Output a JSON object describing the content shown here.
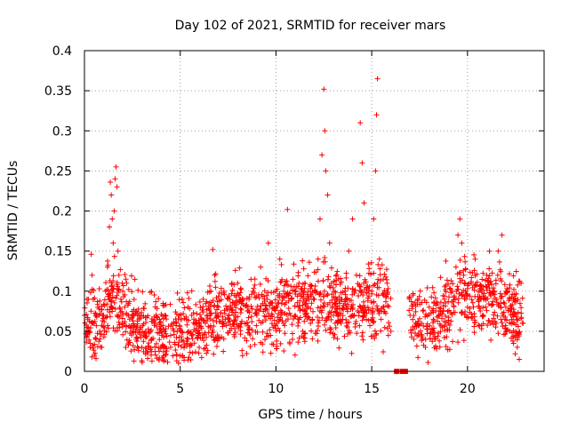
{
  "chart_data": {
    "type": "scatter",
    "title": "Day 102 of 2021, SRMTID for receiver mars",
    "xlabel": "GPS time / hours",
    "ylabel": "SRMTID / TECUs",
    "xlim": [
      0,
      24
    ],
    "ylim": [
      0,
      0.4
    ],
    "xticks": [
      0,
      5,
      10,
      15,
      20
    ],
    "xtick_labels": [
      "0",
      "5",
      "10",
      "15",
      "20"
    ],
    "yticks": [
      0,
      0.05,
      0.1,
      0.15,
      0.2,
      0.25,
      0.3,
      0.35,
      0.4
    ],
    "ytick_labels": [
      "0",
      "0.05",
      "0.1",
      "0.15",
      "0.2",
      "0.25",
      "0.3",
      "0.35",
      "0.4"
    ],
    "grid": true,
    "marker": "+",
    "color": "#ff0000",
    "point_count_estimate": 2300,
    "x_range_observed": [
      0,
      22.9
    ],
    "notes_on_density": "dense band of points mostly between 0.02 and 0.12 across the day; gap near 16.0-16.9 h with small squares at y=0",
    "points": [
      [
        0.0,
        0.07
      ],
      [
        0.1,
        0.05
      ],
      [
        0.2,
        0.09
      ],
      [
        0.3,
        0.03
      ],
      [
        0.35,
        0.146
      ],
      [
        0.4,
        0.12
      ],
      [
        0.5,
        0.06
      ],
      [
        0.6,
        0.04
      ],
      [
        0.7,
        0.08
      ],
      [
        0.8,
        0.05
      ],
      [
        0.9,
        0.03
      ],
      [
        1.0,
        0.07
      ],
      [
        1.1,
        0.1
      ],
      [
        1.2,
        0.13
      ],
      [
        1.3,
        0.18
      ],
      [
        1.35,
        0.236
      ],
      [
        1.4,
        0.22
      ],
      [
        1.45,
        0.19
      ],
      [
        1.5,
        0.16
      ],
      [
        1.55,
        0.2
      ],
      [
        1.6,
        0.24
      ],
      [
        1.65,
        0.255
      ],
      [
        1.7,
        0.23
      ],
      [
        1.75,
        0.15
      ],
      [
        1.8,
        0.12
      ],
      [
        1.9,
        0.09
      ],
      [
        2.0,
        0.1
      ],
      [
        2.1,
        0.08
      ],
      [
        2.2,
        0.11
      ],
      [
        2.3,
        0.07
      ],
      [
        2.5,
        0.05
      ],
      [
        2.7,
        0.04
      ],
      [
        3.0,
        0.03
      ],
      [
        3.2,
        0.05
      ],
      [
        3.3,
        0.016
      ],
      [
        3.5,
        0.04
      ],
      [
        3.7,
        0.06
      ],
      [
        4.0,
        0.05
      ],
      [
        4.2,
        0.07
      ],
      [
        4.5,
        0.03
      ],
      [
        4.8,
        0.06
      ],
      [
        5.0,
        0.05
      ],
      [
        5.1,
        0.09
      ],
      [
        5.2,
        0.014
      ],
      [
        5.4,
        0.04
      ],
      [
        5.6,
        0.07
      ],
      [
        5.8,
        0.05
      ],
      [
        6.0,
        0.06
      ],
      [
        6.2,
        0.09
      ],
      [
        6.4,
        0.07
      ],
      [
        6.6,
        0.1
      ],
      [
        6.7,
        0.152
      ],
      [
        6.8,
        0.12
      ],
      [
        7.0,
        0.08
      ],
      [
        7.2,
        0.06
      ],
      [
        7.5,
        0.09
      ],
      [
        7.8,
        0.07
      ],
      [
        8.0,
        0.11
      ],
      [
        8.2,
        0.06
      ],
      [
        8.5,
        0.08
      ],
      [
        8.8,
        0.1
      ],
      [
        9.0,
        0.07
      ],
      [
        9.2,
        0.13
      ],
      [
        9.4,
        0.09
      ],
      [
        9.6,
        0.16
      ],
      [
        9.8,
        0.07
      ],
      [
        10.0,
        0.1
      ],
      [
        10.2,
        0.14
      ],
      [
        10.4,
        0.06
      ],
      [
        10.6,
        0.202
      ],
      [
        10.8,
        0.09
      ],
      [
        11.0,
        0.07
      ],
      [
        11.2,
        0.11
      ],
      [
        11.4,
        0.05
      ],
      [
        11.6,
        0.08
      ],
      [
        11.8,
        0.06
      ],
      [
        12.0,
        0.09
      ],
      [
        12.2,
        0.14
      ],
      [
        12.3,
        0.19
      ],
      [
        12.4,
        0.27
      ],
      [
        12.5,
        0.352
      ],
      [
        12.55,
        0.3
      ],
      [
        12.6,
        0.25
      ],
      [
        12.7,
        0.22
      ],
      [
        12.8,
        0.16
      ],
      [
        12.9,
        0.11
      ],
      [
        13.0,
        0.07
      ],
      [
        13.2,
        0.09
      ],
      [
        13.4,
        0.06
      ],
      [
        13.6,
        0.1
      ],
      [
        13.8,
        0.15
      ],
      [
        14.0,
        0.19
      ],
      [
        14.2,
        0.12
      ],
      [
        14.4,
        0.31
      ],
      [
        14.5,
        0.26
      ],
      [
        14.6,
        0.21
      ],
      [
        14.8,
        0.08
      ],
      [
        15.0,
        0.1
      ],
      [
        15.1,
        0.19
      ],
      [
        15.2,
        0.25
      ],
      [
        15.25,
        0.32
      ],
      [
        15.3,
        0.365
      ],
      [
        15.4,
        0.14
      ],
      [
        15.6,
        0.08
      ],
      [
        15.8,
        0.11
      ],
      [
        16.0,
        0.05
      ],
      [
        17.0,
        0.07
      ],
      [
        17.2,
        0.04
      ],
      [
        17.4,
        0.09
      ],
      [
        17.6,
        0.06
      ],
      [
        17.8,
        0.03
      ],
      [
        18.0,
        0.08
      ],
      [
        18.2,
        0.05
      ],
      [
        18.5,
        0.07
      ],
      [
        18.8,
        0.09
      ],
      [
        19.0,
        0.06
      ],
      [
        19.2,
        0.1
      ],
      [
        19.4,
        0.13
      ],
      [
        19.5,
        0.17
      ],
      [
        19.6,
        0.19
      ],
      [
        19.7,
        0.16
      ],
      [
        19.8,
        0.12
      ],
      [
        20.0,
        0.08
      ],
      [
        20.2,
        0.11
      ],
      [
        20.4,
        0.14
      ],
      [
        20.6,
        0.09
      ],
      [
        20.8,
        0.07
      ],
      [
        21.0,
        0.12
      ],
      [
        21.2,
        0.06
      ],
      [
        21.4,
        0.1
      ],
      [
        21.6,
        0.15
      ],
      [
        21.8,
        0.17
      ],
      [
        22.0,
        0.08
      ],
      [
        22.2,
        0.05
      ],
      [
        22.4,
        0.09
      ],
      [
        22.6,
        0.03
      ],
      [
        22.7,
        0.015
      ],
      [
        22.8,
        0.11
      ],
      [
        22.9,
        0.06
      ]
    ],
    "gap_markers": [
      [
        16.3,
        0.0
      ],
      [
        16.6,
        0.0
      ],
      [
        16.75,
        0.0
      ]
    ]
  }
}
